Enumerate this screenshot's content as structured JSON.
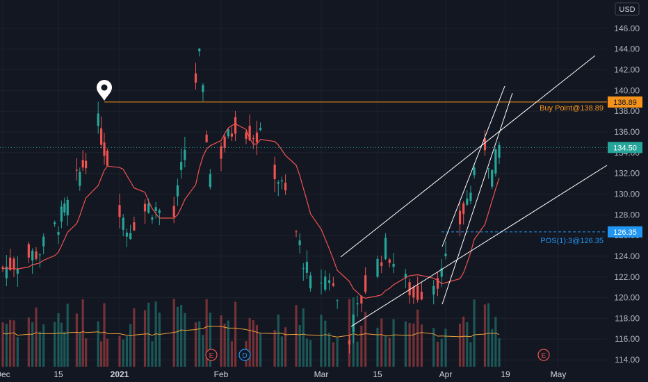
{
  "currency": "USD",
  "colors": {
    "background": "#131722",
    "grid": "#1f2430",
    "axis_text": "#b2b5be",
    "up": "#26a69a",
    "down": "#ef5350",
    "ma_price": "#ef5350",
    "ma_volume": "#f0a23a",
    "buy_line": "#f7931a",
    "pos_line": "#2196f3",
    "last_price": "#26a69a",
    "channel": "#ffffff"
  },
  "y_axis": {
    "ticks": [
      "146.00",
      "144.00",
      "142.00",
      "140.00",
      "138.00",
      "136.00",
      "134.00",
      "132.00",
      "130.00",
      "128.00",
      "126.00",
      "124.00",
      "122.00",
      "120.00",
      "118.00",
      "116.00",
      "114.00"
    ],
    "range": [
      113.2,
      148.2
    ]
  },
  "x_axis": {
    "ticks": [
      "Dec",
      "15",
      "2021",
      "Feb",
      "Mar",
      "15",
      "Apr",
      "19",
      "May"
    ]
  },
  "price_labels": {
    "buy_price": "138.89",
    "buy_text": "Buy Point@138.89",
    "last_price": "134.50",
    "pos_price": "126.35",
    "pos_text": "POS(1):3@126.35"
  },
  "event_markers": [
    {
      "letter": "E",
      "kind": "earnings"
    },
    {
      "letter": "D",
      "kind": "dividend"
    },
    {
      "letter": "E",
      "kind": "earnings-upcoming"
    }
  ],
  "pin_icon": "map-pin-icon",
  "chart_data": {
    "type": "candlestick",
    "series_count": 94,
    "anchor_closes": [
      {
        "date": "2020-11-30",
        "close": 122.8
      },
      {
        "date": "2020-12-10",
        "close": 124.5
      },
      {
        "date": "2020-12-18",
        "close": 128.9
      },
      {
        "date": "2020-12-28",
        "close": 136.7
      },
      {
        "date": "2021-01-06",
        "close": 126.6
      },
      {
        "date": "2021-01-12",
        "close": 128.8
      },
      {
        "date": "2021-01-19",
        "close": 127.8
      },
      {
        "date": "2021-01-26",
        "close": 143.2
      },
      {
        "date": "2021-01-29",
        "close": 131.9
      },
      {
        "date": "2021-02-05",
        "close": 136.8
      },
      {
        "date": "2021-02-12",
        "close": 135.4
      },
      {
        "date": "2021-02-19",
        "close": 129.9
      },
      {
        "date": "2021-02-26",
        "close": 121.3
      },
      {
        "date": "2021-03-03",
        "close": 122.1
      },
      {
        "date": "2021-03-08",
        "close": 116.4
      },
      {
        "date": "2021-03-12",
        "close": 121.0
      },
      {
        "date": "2021-03-17",
        "close": 124.8
      },
      {
        "date": "2021-03-24",
        "close": 120.1
      },
      {
        "date": "2021-03-31",
        "close": 122.2
      },
      {
        "date": "2021-04-08",
        "close": 130.4
      },
      {
        "date": "2021-04-12",
        "close": 134.8
      },
      {
        "date": "2021-04-14",
        "close": 132.0
      },
      {
        "date": "2021-04-16",
        "close": 134.5
      }
    ],
    "moving_average": "price SMA (red)",
    "volume_average": "volume SMA (orange)",
    "levels": {
      "buy_point": 138.89,
      "position": 126.35,
      "last": 134.5
    },
    "ylim": [
      113.2,
      148.2
    ]
  }
}
